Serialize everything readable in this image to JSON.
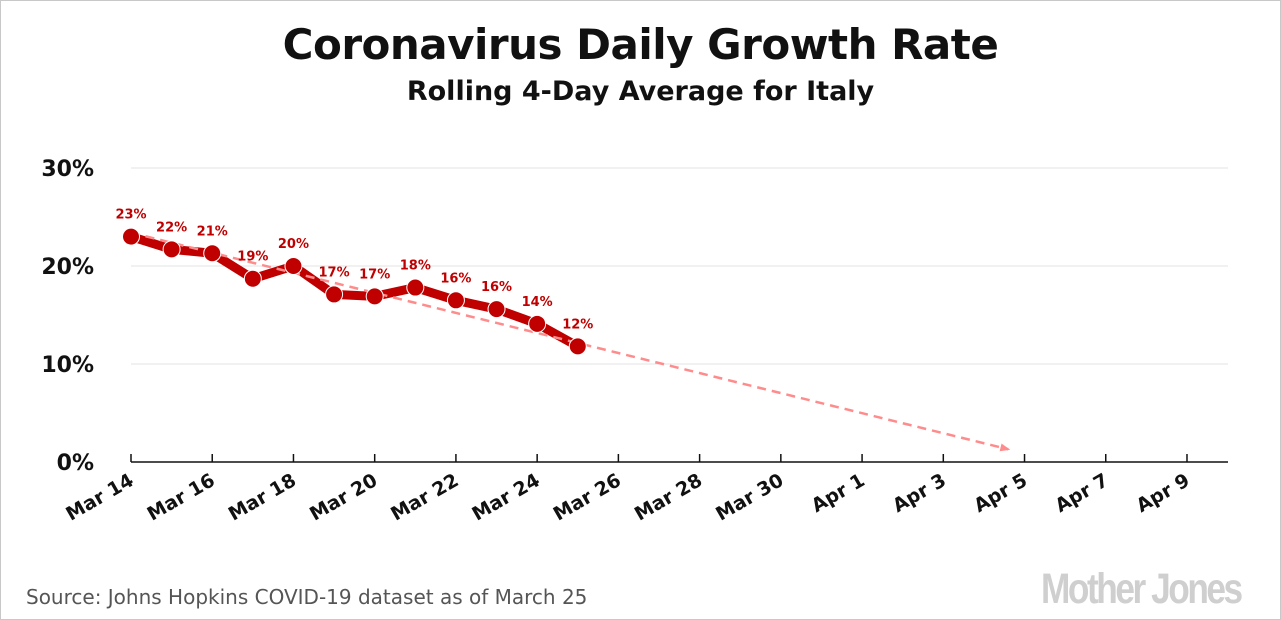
{
  "chart_data": {
    "type": "line",
    "title": "Coronavirus Daily Growth Rate",
    "subtitle": "Rolling 4-Day Average for Italy",
    "xlabel": "",
    "ylabel": "",
    "ylim": [
      0,
      30
    ],
    "yticks": [
      "0%",
      "10%",
      "20%",
      "30%"
    ],
    "ytick_values": [
      0,
      10,
      20,
      30
    ],
    "x_start_day": 0,
    "x_end_day": 27,
    "xticks": [
      "Mar 14",
      "Mar 16",
      "Mar 18",
      "Mar 20",
      "Mar 22",
      "Mar 24",
      "Mar 26",
      "Mar 28",
      "Mar 30",
      "Apr 1",
      "Apr 3",
      "Apr 5",
      "Apr 7",
      "Apr 9"
    ],
    "xtick_days": [
      0,
      2,
      4,
      6,
      8,
      10,
      12,
      14,
      16,
      18,
      20,
      22,
      24,
      26
    ],
    "grid": true,
    "series": [
      {
        "name": "Italy 4-day rolling average growth rate",
        "color": "#c00000",
        "x": [
          "Mar 14",
          "Mar 15",
          "Mar 16",
          "Mar 17",
          "Mar 18",
          "Mar 19",
          "Mar 20",
          "Mar 21",
          "Mar 22",
          "Mar 23",
          "Mar 24",
          "Mar 25"
        ],
        "days": [
          0,
          1,
          2,
          3,
          4,
          5,
          6,
          7,
          8,
          9,
          10,
          11
        ],
        "values": [
          23.0,
          21.7,
          21.3,
          18.7,
          20.0,
          17.1,
          16.9,
          17.8,
          16.5,
          15.6,
          14.1,
          11.8
        ],
        "labels": [
          "23%",
          "22%",
          "21%",
          "19%",
          "20%",
          "17%",
          "17%",
          "18%",
          "16%",
          "16%",
          "14%",
          "12%"
        ]
      },
      {
        "name": "Trend line",
        "color": "#ff8c8c",
        "style": "dashed-arrow",
        "days": [
          0,
          21.6
        ],
        "values": [
          23.4,
          1.3
        ]
      }
    ]
  },
  "source": "Source: Johns Hopkins COVID-19 dataset as of March 25",
  "logo": "Mother Jones"
}
